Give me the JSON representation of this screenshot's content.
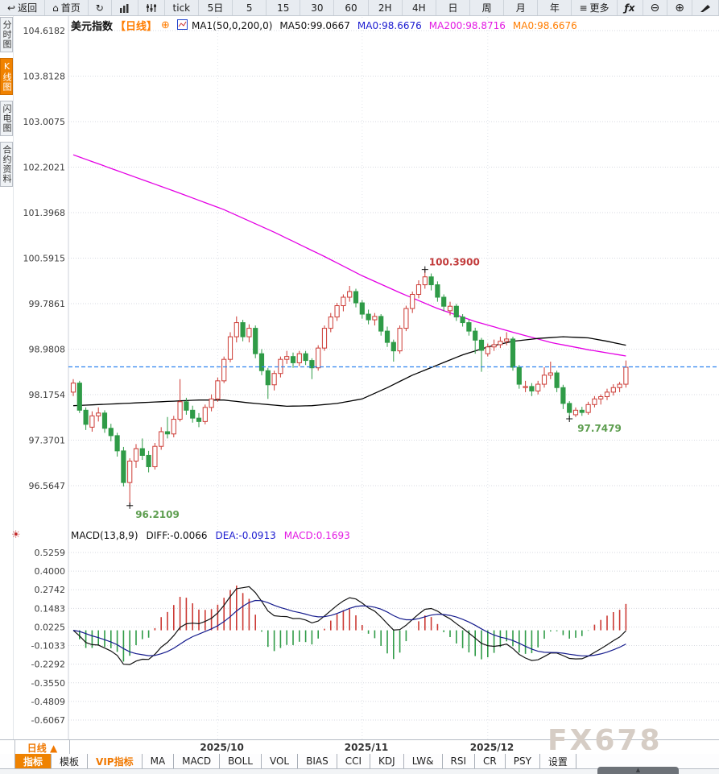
{
  "toolbar": {
    "buttons_left": [
      {
        "icon": "back-arrow",
        "label": "返回"
      },
      {
        "icon": "home",
        "label": "首页"
      },
      {
        "icon": "refresh",
        "label": ""
      },
      {
        "icon": "bar-chart",
        "label": ""
      },
      {
        "icon": "sliders",
        "label": ""
      }
    ],
    "timeframes": [
      "tick",
      "5日",
      "5",
      "15",
      "30",
      "60",
      "2H",
      "4H",
      "日",
      "周",
      "月",
      "年"
    ],
    "buttons_right": [
      {
        "icon": "menu",
        "label": "更多"
      },
      {
        "icon": "fx",
        "label": ""
      },
      {
        "icon": "zoom-out",
        "label": ""
      },
      {
        "icon": "zoom-in",
        "label": ""
      },
      {
        "icon": "pencil",
        "label": ""
      }
    ]
  },
  "sidebar": {
    "items": [
      {
        "label": "分时图",
        "active": false
      },
      {
        "label": "K线图",
        "active": true
      },
      {
        "label": "闪电图",
        "active": false
      },
      {
        "label": "合约资料",
        "active": false
      }
    ]
  },
  "chart_header": {
    "symbol": "美元指数",
    "period": "【日线】",
    "add_icon": "⊕",
    "ma_settings": "MA1(50,0,200,0)",
    "ma50": "MA50:99.0667",
    "ma0_blue": "MA0:98.6676",
    "ma200": "MA200:98.8716",
    "ma0_orange": "MA0:98.6676"
  },
  "macd_header": {
    "title": "MACD(13,8,9)",
    "diff": "DIFF:-0.0066",
    "dea": "DEA:-0.0913",
    "macd": "MACD:0.1693"
  },
  "footer": {
    "period_label": "日线 ▲",
    "dates": [
      "2025/10",
      "2025/11",
      "2025/12"
    ],
    "tabs": [
      {
        "label": "指标",
        "style": "active"
      },
      {
        "label": "模板",
        "style": ""
      },
      {
        "label": "VIP指标",
        "style": "vip"
      },
      {
        "label": "MA",
        "style": ""
      },
      {
        "label": "MACD",
        "style": ""
      },
      {
        "label": "BOLL",
        "style": ""
      },
      {
        "label": "VOL",
        "style": ""
      },
      {
        "label": "BIAS",
        "style": ""
      },
      {
        "label": "CCI",
        "style": ""
      },
      {
        "label": "KDJ",
        "style": ""
      },
      {
        "label": "LW&",
        "style": ""
      },
      {
        "label": "RSI",
        "style": ""
      },
      {
        "label": "CR",
        "style": ""
      },
      {
        "label": "PSY",
        "style": ""
      },
      {
        "label": "设置",
        "style": ""
      }
    ]
  },
  "watermark": "FX678",
  "chart_data": {
    "type": "candlestick+macd",
    "symbol": "美元指数 (US Dollar Index)",
    "period": "日线 (Daily)",
    "y_axis_main": [
      104.6182,
      103.8128,
      103.0075,
      102.2021,
      101.3968,
      100.5915,
      99.7861,
      98.9808,
      98.1754,
      97.3701,
      96.5647
    ],
    "y_axis_macd": [
      0.5259,
      0.4,
      0.2742,
      0.1483,
      0.0225,
      -0.1033,
      -0.2292,
      -0.355,
      -0.4809,
      -0.6067
    ],
    "x_dates": [
      "2025/10",
      "2025/11",
      "2025/12"
    ],
    "month_start_indices": [
      23,
      46,
      66
    ],
    "current_price": 98.6676,
    "ma50_last": 99.0667,
    "ma200_last": 98.8716,
    "macd_params": {
      "fast": 8,
      "slow": 13,
      "signal": 9
    },
    "annotations": {
      "high": "100.3900",
      "low": "96.2109",
      "recent_low": "97.7479"
    },
    "high_index": 56,
    "low_index": 9,
    "recent_low_index": 79,
    "candles": [
      [
        98.22,
        98.45,
        98.15,
        98.38
      ],
      [
        98.38,
        98.42,
        97.85,
        97.9
      ],
      [
        97.9,
        97.95,
        97.55,
        97.65
      ],
      [
        97.6,
        97.88,
        97.52,
        97.8
      ],
      [
        97.8,
        97.95,
        97.7,
        97.85
      ],
      [
        97.85,
        97.9,
        97.5,
        97.58
      ],
      [
        97.58,
        97.66,
        97.35,
        97.45
      ],
      [
        97.45,
        97.5,
        97.08,
        97.18
      ],
      [
        97.18,
        97.25,
        96.55,
        96.62
      ],
      [
        96.62,
        97.05,
        96.2109,
        97.0
      ],
      [
        97.0,
        97.3,
        96.88,
        97.22
      ],
      [
        97.22,
        97.4,
        97.02,
        97.1
      ],
      [
        97.1,
        97.18,
        96.8,
        96.9
      ],
      [
        96.9,
        97.32,
        96.85,
        97.26
      ],
      [
        97.26,
        97.6,
        97.2,
        97.52
      ],
      [
        97.52,
        97.78,
        97.4,
        97.48
      ],
      [
        97.48,
        97.8,
        97.42,
        97.74
      ],
      [
        97.74,
        98.45,
        97.7,
        98.05
      ],
      [
        98.05,
        98.12,
        97.82,
        97.9
      ],
      [
        97.9,
        97.98,
        97.68,
        97.76
      ],
      [
        97.76,
        97.85,
        97.6,
        97.7
      ],
      [
        97.7,
        98.0,
        97.65,
        97.95
      ],
      [
        97.95,
        98.18,
        97.88,
        98.1
      ],
      [
        98.1,
        98.48,
        98.05,
        98.42
      ],
      [
        98.42,
        98.85,
        98.38,
        98.8
      ],
      [
        98.8,
        99.28,
        98.75,
        99.2
      ],
      [
        99.2,
        99.56,
        99.1,
        99.45
      ],
      [
        99.45,
        99.5,
        99.12,
        99.2
      ],
      [
        99.2,
        99.42,
        99.1,
        99.35
      ],
      [
        99.35,
        99.4,
        98.82,
        98.9
      ],
      [
        98.9,
        98.98,
        98.52,
        98.6
      ],
      [
        98.6,
        98.65,
        98.1,
        98.35
      ],
      [
        98.35,
        98.6,
        98.25,
        98.55
      ],
      [
        98.55,
        98.85,
        98.48,
        98.8
      ],
      [
        98.8,
        98.95,
        98.72,
        98.85
      ],
      [
        98.85,
        98.92,
        98.65,
        98.74
      ],
      [
        98.74,
        98.95,
        98.68,
        98.9
      ],
      [
        98.9,
        98.95,
        98.7,
        98.78
      ],
      [
        98.78,
        98.82,
        98.45,
        98.65
      ],
      [
        98.65,
        99.05,
        98.6,
        99.0
      ],
      [
        99.0,
        99.4,
        98.95,
        99.35
      ],
      [
        99.35,
        99.62,
        99.28,
        99.55
      ],
      [
        99.55,
        99.8,
        99.48,
        99.75
      ],
      [
        99.75,
        99.95,
        99.65,
        99.9
      ],
      [
        99.9,
        100.1,
        99.82,
        100.0
      ],
      [
        100.0,
        100.05,
        99.72,
        99.8
      ],
      [
        99.8,
        99.85,
        99.52,
        99.6
      ],
      [
        99.6,
        99.68,
        99.42,
        99.5
      ],
      [
        99.5,
        99.62,
        99.4,
        99.56
      ],
      [
        99.56,
        99.6,
        99.22,
        99.3
      ],
      [
        99.3,
        99.38,
        99.02,
        99.1
      ],
      [
        99.1,
        99.15,
        98.76,
        98.95
      ],
      [
        98.95,
        99.4,
        98.9,
        99.35
      ],
      [
        99.35,
        99.75,
        99.3,
        99.7
      ],
      [
        99.7,
        100.0,
        99.62,
        99.95
      ],
      [
        99.95,
        100.2,
        99.88,
        100.12
      ],
      [
        100.12,
        100.39,
        100.05,
        100.26
      ],
      [
        100.26,
        100.32,
        100.02,
        100.12
      ],
      [
        100.12,
        100.18,
        99.82,
        99.9
      ],
      [
        99.9,
        99.95,
        99.65,
        99.74
      ],
      [
        99.66,
        99.82,
        99.58,
        99.74
      ],
      [
        99.74,
        99.78,
        99.48,
        99.55
      ],
      [
        99.55,
        99.6,
        99.38,
        99.45
      ],
      [
        99.45,
        99.5,
        99.22,
        99.3
      ],
      [
        99.3,
        99.36,
        98.9,
        99.14
      ],
      [
        99.14,
        99.18,
        98.58,
        98.96
      ],
      [
        98.9,
        99.08,
        98.85,
        99.02
      ],
      [
        99.02,
        99.15,
        98.95,
        99.06
      ],
      [
        99.06,
        99.2,
        99.0,
        99.12
      ],
      [
        99.12,
        99.28,
        99.05,
        99.16
      ],
      [
        99.16,
        99.2,
        98.6,
        98.66
      ],
      [
        98.66,
        98.7,
        98.28,
        98.36
      ],
      [
        98.3,
        98.42,
        98.22,
        98.32
      ],
      [
        98.32,
        98.38,
        98.15,
        98.24
      ],
      [
        98.24,
        98.42,
        98.18,
        98.36
      ],
      [
        98.36,
        98.66,
        98.3,
        98.52
      ],
      [
        98.52,
        98.76,
        98.45,
        98.56
      ],
      [
        98.56,
        98.6,
        98.22,
        98.3
      ],
      [
        98.3,
        98.35,
        97.92,
        98.02
      ],
      [
        98.02,
        98.06,
        97.7479,
        97.86
      ],
      [
        97.82,
        97.95,
        97.78,
        97.9
      ],
      [
        97.9,
        97.96,
        97.8,
        97.86
      ],
      [
        97.86,
        98.05,
        97.82,
        98.0
      ],
      [
        98.0,
        98.15,
        97.95,
        98.1
      ],
      [
        98.1,
        98.18,
        98.0,
        98.14
      ],
      [
        98.14,
        98.28,
        98.08,
        98.22
      ],
      [
        98.22,
        98.36,
        98.16,
        98.3
      ],
      [
        98.3,
        98.4,
        98.22,
        98.36
      ],
      [
        98.36,
        98.78,
        98.3,
        98.66
      ]
    ],
    "ma50_keyframes": [
      [
        0,
        97.98
      ],
      [
        8,
        98.02
      ],
      [
        16,
        98.06
      ],
      [
        20,
        98.08
      ],
      [
        24,
        98.08
      ],
      [
        28,
        98.03
      ],
      [
        34,
        97.97
      ],
      [
        38,
        97.98
      ],
      [
        42,
        98.02
      ],
      [
        46,
        98.1
      ],
      [
        50,
        98.3
      ],
      [
        54,
        98.52
      ],
      [
        58,
        98.7
      ],
      [
        62,
        98.88
      ],
      [
        66,
        99.02
      ],
      [
        70,
        99.12
      ],
      [
        74,
        99.17
      ],
      [
        78,
        99.2
      ],
      [
        82,
        99.18
      ],
      [
        85,
        99.12
      ],
      [
        88,
        99.05
      ]
    ],
    "ma200_keyframes": [
      [
        0,
        102.42
      ],
      [
        8,
        102.1
      ],
      [
        16,
        101.78
      ],
      [
        24,
        101.45
      ],
      [
        32,
        101.05
      ],
      [
        40,
        100.62
      ],
      [
        46,
        100.28
      ],
      [
        52,
        99.98
      ],
      [
        58,
        99.7
      ],
      [
        64,
        99.47
      ],
      [
        70,
        99.28
      ],
      [
        76,
        99.1
      ],
      [
        82,
        98.97
      ],
      [
        88,
        98.86
      ]
    ],
    "colors": {
      "up": "#cc3a34",
      "down": "#2f9b47",
      "ma50": "#000000",
      "ma200": "#e400e4",
      "current_price_line": "#2e82f0",
      "diff_line": "#111111",
      "dea_line": "#151b8d",
      "grid": "#d7dae1",
      "axis_text": "#3c3c3c",
      "high_label": "#c23b3b",
      "low_label": "#5e9e50"
    }
  }
}
